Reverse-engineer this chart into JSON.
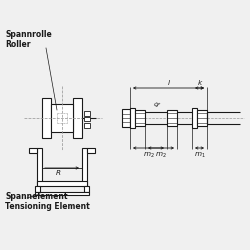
{
  "bg_color": "#f0f0f0",
  "line_color": "#1a1a1a",
  "dash_color": "#999999",
  "label_color": "#111111",
  "white": "#ffffff",
  "title_left_line1": "Spannrolle",
  "title_left_line2": "Roller",
  "title_bottom_line1": "Spannelement",
  "title_bottom_line2": "Tensioning Element",
  "font_size_label": 5.5,
  "font_size_dim": 5.2,
  "font_bold": "bold"
}
